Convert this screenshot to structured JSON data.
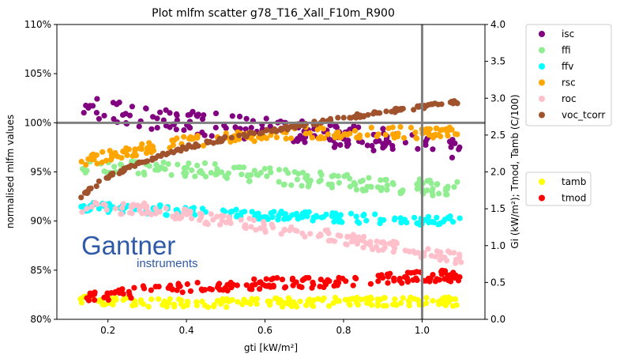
{
  "colors": {
    "isc": "#800080",
    "ffi": "#90ee90",
    "ffv": "#00ffff",
    "rsc": "#ffa500",
    "roc": "#ffc0cb",
    "voc_tcorr": "#a0522d",
    "tamb": "#ffff00",
    "tmod": "#ff0000",
    "crosshair": "#808080",
    "logo": "#2f5aa8"
  },
  "logo": {
    "name": "Gantner",
    "sub": "instruments"
  },
  "chart_data": {
    "type": "scatter",
    "title": "Plot mlfm scatter g78_T16_Xall_F10m_R900",
    "xlabel": "gti [kW/m²]",
    "ylabel_left": "normalised mlfm values",
    "ylabel_right": "Gi (kW/m²); Tmod, Tamb (C/100)",
    "xlim": [
      0.07,
      1.16
    ],
    "ylim_left": [
      0.8,
      1.1
    ],
    "ylim_right": [
      0.0,
      4.0
    ],
    "x_ticks": [
      "0.2",
      "0.4",
      "0.6",
      "0.8",
      "1.0"
    ],
    "x_tick_values": [
      0.2,
      0.4,
      0.6,
      0.8,
      1.0
    ],
    "y_left_ticks": [
      "80%",
      "85%",
      "90%",
      "95%",
      "100%",
      "105%",
      "110%"
    ],
    "y_left_tick_values": [
      0.8,
      0.85,
      0.9,
      0.95,
      1.0,
      1.05,
      1.1
    ],
    "y_right_ticks": [
      "0.0",
      "0.5",
      "1.0",
      "1.5",
      "2.0",
      "2.5",
      "3.0",
      "3.5",
      "4.0"
    ],
    "y_right_tick_values": [
      0.0,
      0.5,
      1.0,
      1.5,
      2.0,
      2.5,
      3.0,
      3.5,
      4.0
    ],
    "reference_lines": {
      "x": 1.0,
      "y": 1.0
    },
    "legend_left_axis": [
      "isc",
      "ffi",
      "ffv",
      "rsc",
      "roc",
      "voc_tcorr"
    ],
    "legend_right_axis": [
      "tamb",
      "tmod"
    ],
    "legend_placement": "outside right",
    "grid": false,
    "series": [
      {
        "name": "isc",
        "axis": "left",
        "x_range": [
          0.13,
          1.1
        ],
        "trend": [
          [
            0.13,
            1.015
          ],
          [
            0.3,
            1.005
          ],
          [
            0.5,
            0.997
          ],
          [
            0.7,
            0.99
          ],
          [
            0.9,
            0.982
          ],
          [
            1.1,
            0.975
          ]
        ],
        "spread": 0.012
      },
      {
        "name": "ffi",
        "axis": "left",
        "x_range": [
          0.13,
          1.1
        ],
        "trend": [
          [
            0.13,
            0.955
          ],
          [
            0.3,
            0.955
          ],
          [
            0.5,
            0.95
          ],
          [
            0.7,
            0.943
          ],
          [
            0.9,
            0.937
          ],
          [
            1.1,
            0.932
          ]
        ],
        "spread": 0.008
      },
      {
        "name": "ffv",
        "axis": "left",
        "x_range": [
          0.13,
          1.1
        ],
        "trend": [
          [
            0.13,
            0.915
          ],
          [
            0.3,
            0.912
          ],
          [
            0.5,
            0.908
          ],
          [
            0.7,
            0.905
          ],
          [
            0.9,
            0.902
          ],
          [
            1.1,
            0.9
          ]
        ],
        "spread": 0.005
      },
      {
        "name": "rsc",
        "axis": "left",
        "x_range": [
          0.13,
          1.1
        ],
        "trend": [
          [
            0.13,
            0.96
          ],
          [
            0.3,
            0.975
          ],
          [
            0.5,
            0.985
          ],
          [
            0.7,
            0.99
          ],
          [
            0.9,
            0.99
          ],
          [
            1.1,
            0.99
          ]
        ],
        "spread": 0.006
      },
      {
        "name": "roc",
        "axis": "left",
        "x_range": [
          0.13,
          1.1
        ],
        "trend": [
          [
            0.13,
            0.915
          ],
          [
            0.3,
            0.912
          ],
          [
            0.5,
            0.9
          ],
          [
            0.7,
            0.89
          ],
          [
            0.9,
            0.875
          ],
          [
            1.1,
            0.862
          ]
        ],
        "spread": 0.006
      },
      {
        "name": "voc_tcorr",
        "axis": "left",
        "x_range": [
          0.13,
          1.1
        ],
        "trend": [
          [
            0.13,
            0.925
          ],
          [
            0.2,
            0.945
          ],
          [
            0.3,
            0.962
          ],
          [
            0.4,
            0.975
          ],
          [
            0.5,
            0.984
          ],
          [
            0.6,
            0.991
          ],
          [
            0.7,
            0.998
          ],
          [
            0.8,
            1.005
          ],
          [
            0.9,
            1.011
          ],
          [
            1.0,
            1.016
          ],
          [
            1.1,
            1.022
          ]
        ],
        "spread": 0.002
      },
      {
        "name": "tamb",
        "axis": "right",
        "x_range": [
          0.13,
          1.1
        ],
        "trend": [
          [
            0.13,
            0.28
          ],
          [
            0.3,
            0.22
          ],
          [
            0.5,
            0.22
          ],
          [
            0.7,
            0.23
          ],
          [
            0.9,
            0.24
          ],
          [
            1.1,
            0.24
          ]
        ],
        "spread": 0.06
      },
      {
        "name": "tmod",
        "axis": "right",
        "x_range": [
          0.13,
          1.1
        ],
        "trend": [
          [
            0.13,
            0.28
          ],
          [
            0.3,
            0.38
          ],
          [
            0.5,
            0.45
          ],
          [
            0.7,
            0.5
          ],
          [
            0.9,
            0.55
          ],
          [
            1.1,
            0.6
          ]
        ],
        "spread": 0.08
      }
    ]
  }
}
